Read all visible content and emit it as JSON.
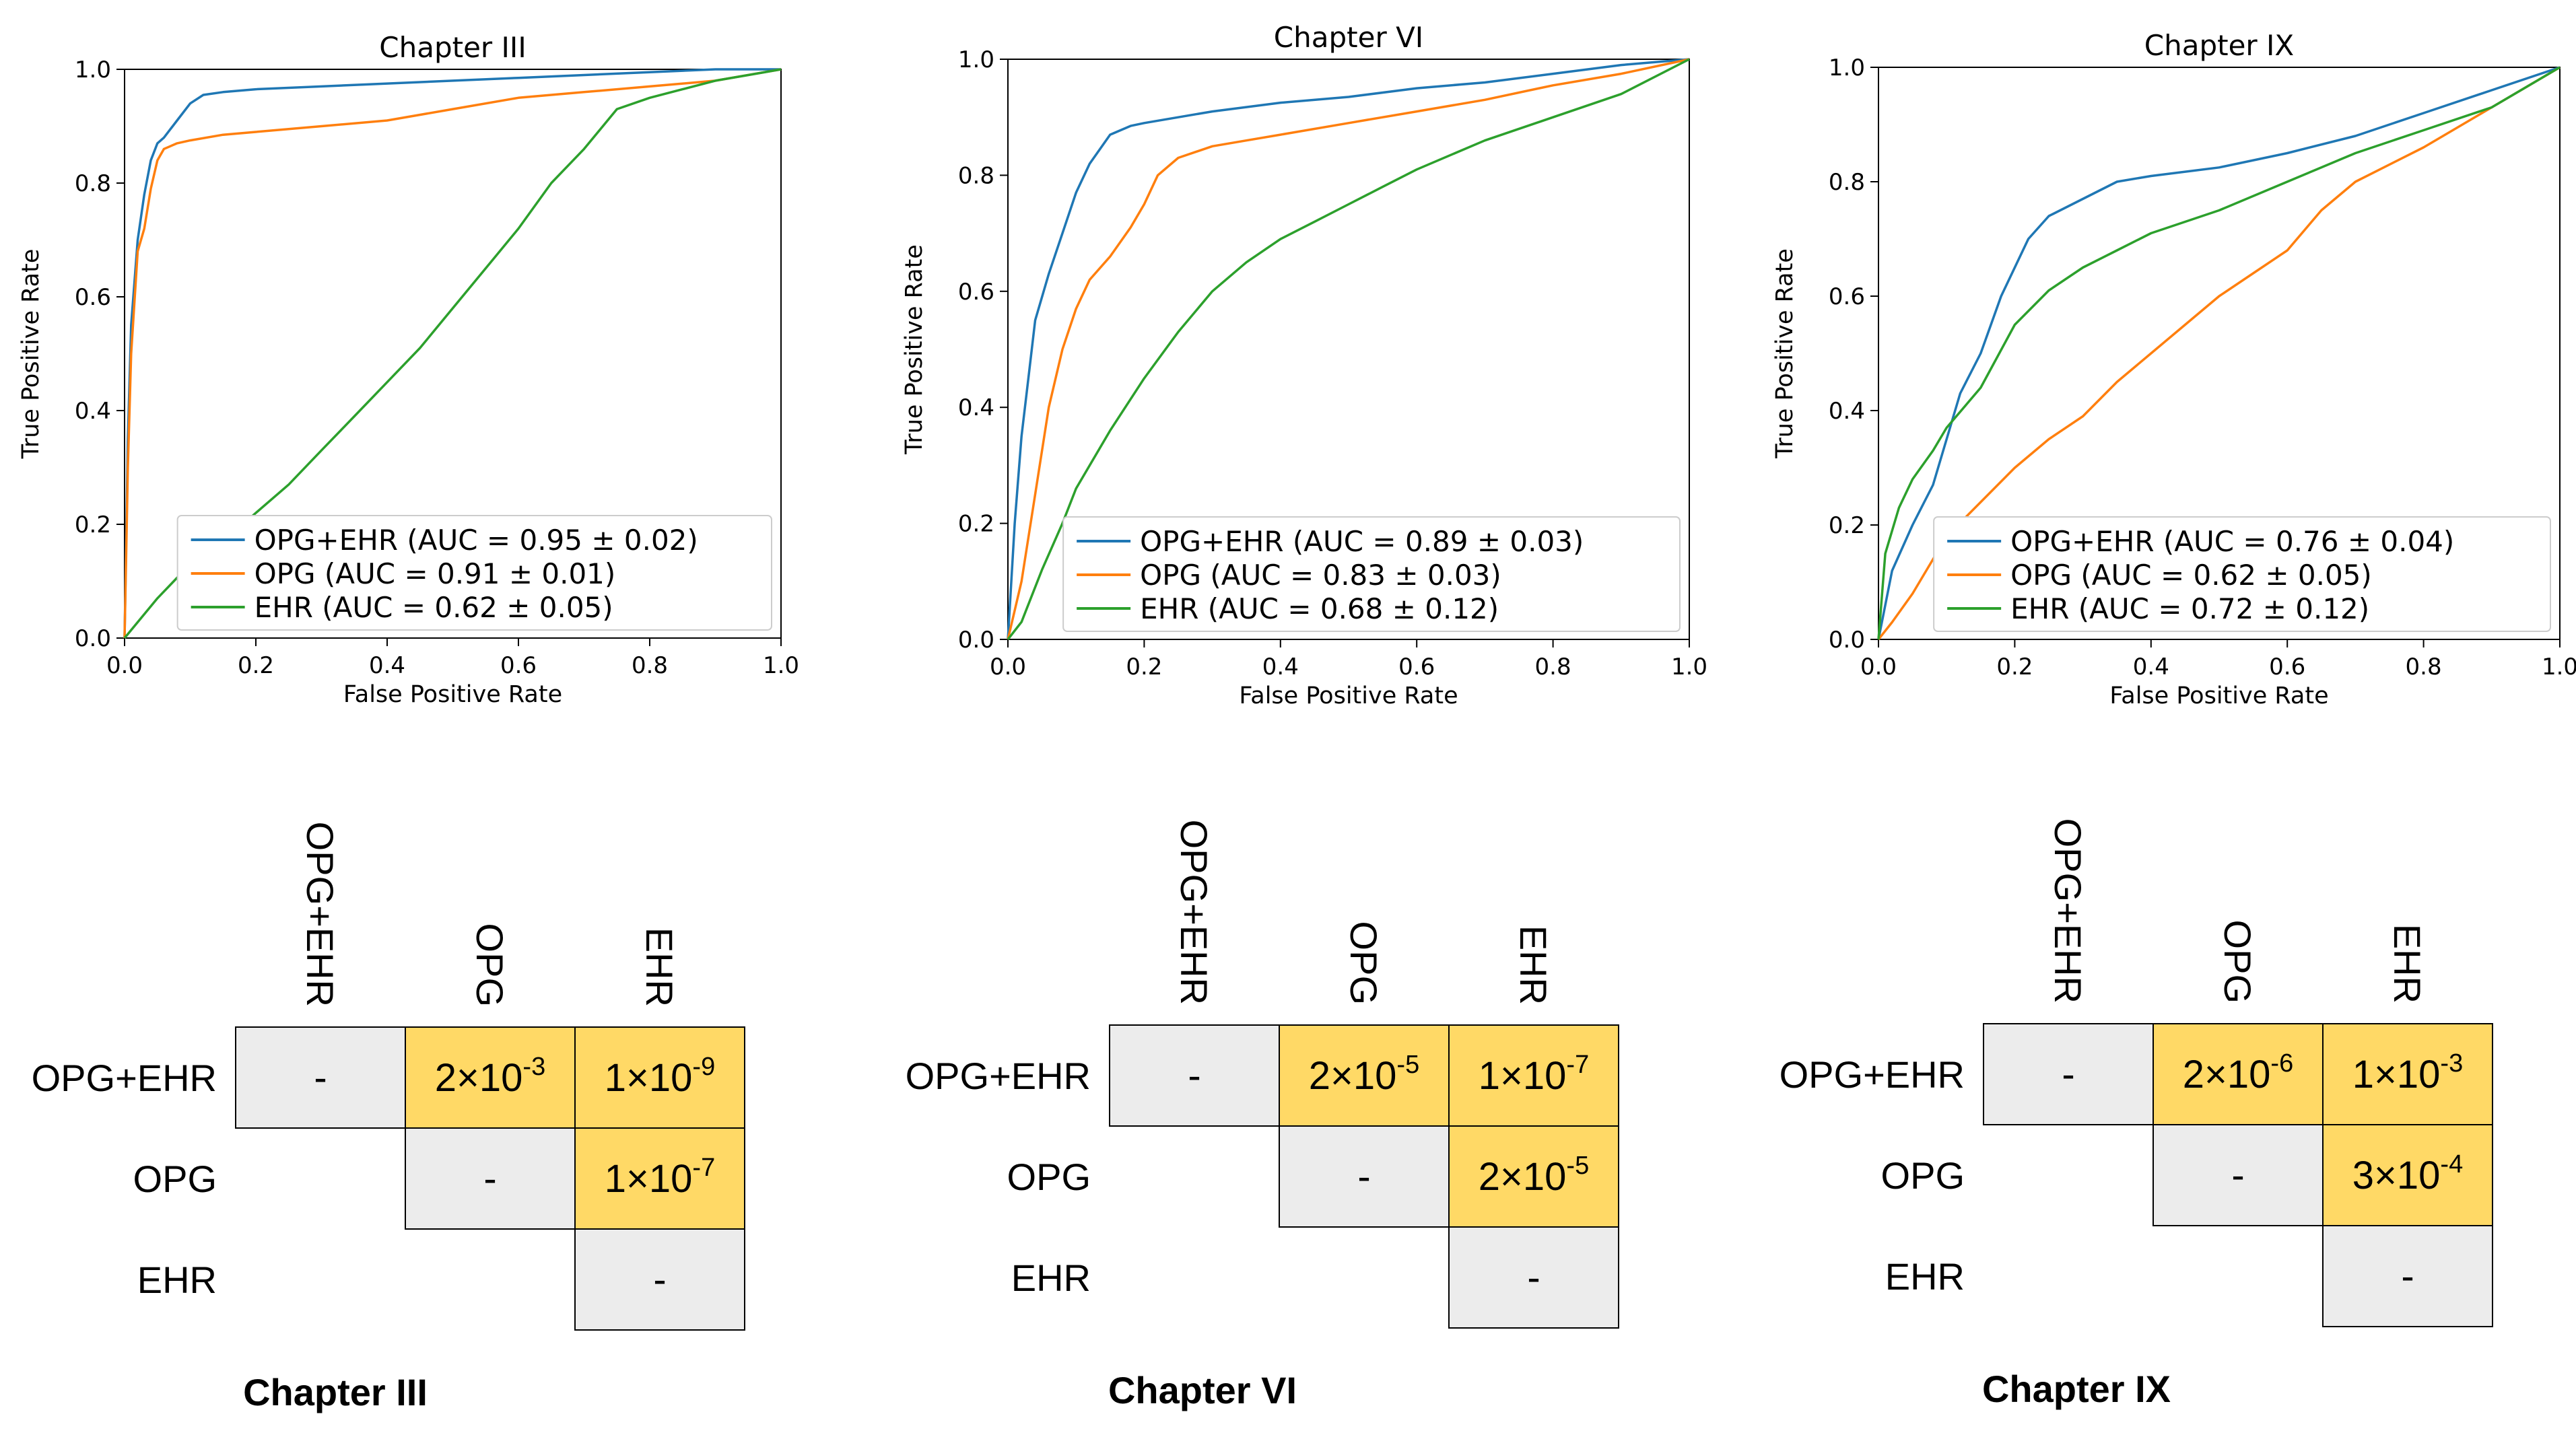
{
  "figure": {
    "colors": {
      "blue": "#1f77b4",
      "orange": "#ff7f0e",
      "green": "#2ca02c",
      "cell_sig": "#ffd966",
      "cell_na": "#ececec"
    }
  },
  "chart_data": [
    {
      "type": "line",
      "title": "Chapter III",
      "xlabel": "False Positive Rate",
      "ylabel": "True Positive Rate",
      "xlim": [
        0,
        1
      ],
      "ylim": [
        0,
        1
      ],
      "xticks": [
        "0.0",
        "0.2",
        "0.4",
        "0.6",
        "0.8",
        "1.0"
      ],
      "yticks": [
        "0.0",
        "0.2",
        "0.4",
        "0.6",
        "0.8",
        "1.0"
      ],
      "legend_position": "lower-right",
      "series": [
        {
          "name": "OPG+EHR (AUC = 0.95 ± 0.02)",
          "color": "blue",
          "x": [
            0,
            0.005,
            0.01,
            0.02,
            0.03,
            0.04,
            0.05,
            0.06,
            0.08,
            0.1,
            0.12,
            0.15,
            0.2,
            0.3,
            0.4,
            0.5,
            0.6,
            0.7,
            0.8,
            0.9,
            1.0
          ],
          "y": [
            0,
            0.35,
            0.55,
            0.7,
            0.78,
            0.84,
            0.87,
            0.88,
            0.91,
            0.94,
            0.955,
            0.96,
            0.965,
            0.97,
            0.975,
            0.98,
            0.985,
            0.99,
            0.995,
            1.0,
            1.0
          ]
        },
        {
          "name": "OPG (AUC = 0.91 ± 0.01)",
          "color": "orange",
          "x": [
            0,
            0.005,
            0.01,
            0.02,
            0.03,
            0.04,
            0.05,
            0.06,
            0.08,
            0.1,
            0.15,
            0.2,
            0.3,
            0.4,
            0.5,
            0.6,
            0.7,
            0.8,
            0.9,
            1.0
          ],
          "y": [
            0,
            0.3,
            0.5,
            0.68,
            0.72,
            0.79,
            0.84,
            0.86,
            0.87,
            0.875,
            0.885,
            0.89,
            0.9,
            0.91,
            0.93,
            0.95,
            0.96,
            0.97,
            0.98,
            1.0
          ]
        },
        {
          "name": "EHR (AUC = 0.62 ± 0.05)",
          "color": "green",
          "x": [
            0,
            0.05,
            0.1,
            0.15,
            0.2,
            0.25,
            0.3,
            0.35,
            0.4,
            0.45,
            0.5,
            0.55,
            0.6,
            0.65,
            0.7,
            0.75,
            0.8,
            0.85,
            0.9,
            0.95,
            1.0
          ],
          "y": [
            0,
            0.07,
            0.13,
            0.17,
            0.22,
            0.27,
            0.33,
            0.39,
            0.45,
            0.51,
            0.58,
            0.65,
            0.72,
            0.8,
            0.86,
            0.93,
            0.95,
            0.965,
            0.98,
            0.99,
            1.0
          ]
        }
      ]
    },
    {
      "type": "line",
      "title": "Chapter VI",
      "xlabel": "False Positive Rate",
      "ylabel": "True Positive Rate",
      "xlim": [
        0,
        1
      ],
      "ylim": [
        0,
        1
      ],
      "xticks": [
        "0.0",
        "0.2",
        "0.4",
        "0.6",
        "0.8",
        "1.0"
      ],
      "yticks": [
        "0.0",
        "0.2",
        "0.4",
        "0.6",
        "0.8",
        "1.0"
      ],
      "legend_position": "lower-right",
      "series": [
        {
          "name": "OPG+EHR (AUC = 0.89 ± 0.03)",
          "color": "blue",
          "x": [
            0,
            0.01,
            0.02,
            0.03,
            0.04,
            0.06,
            0.08,
            0.1,
            0.12,
            0.15,
            0.18,
            0.2,
            0.25,
            0.3,
            0.4,
            0.5,
            0.6,
            0.7,
            0.8,
            0.9,
            1.0
          ],
          "y": [
            0,
            0.2,
            0.35,
            0.45,
            0.55,
            0.63,
            0.7,
            0.77,
            0.82,
            0.87,
            0.885,
            0.89,
            0.9,
            0.91,
            0.925,
            0.935,
            0.95,
            0.96,
            0.975,
            0.99,
            1.0
          ]
        },
        {
          "name": "OPG (AUC = 0.83 ± 0.03)",
          "color": "orange",
          "x": [
            0,
            0.02,
            0.04,
            0.06,
            0.08,
            0.1,
            0.12,
            0.15,
            0.18,
            0.2,
            0.22,
            0.25,
            0.3,
            0.35,
            0.4,
            0.5,
            0.6,
            0.7,
            0.8,
            0.9,
            1.0
          ],
          "y": [
            0,
            0.1,
            0.25,
            0.4,
            0.5,
            0.57,
            0.62,
            0.66,
            0.71,
            0.75,
            0.8,
            0.83,
            0.85,
            0.86,
            0.87,
            0.89,
            0.91,
            0.93,
            0.955,
            0.975,
            1.0
          ]
        },
        {
          "name": "EHR (AUC = 0.68 ± 0.12)",
          "color": "green",
          "x": [
            0,
            0.02,
            0.05,
            0.08,
            0.1,
            0.15,
            0.2,
            0.25,
            0.3,
            0.35,
            0.4,
            0.45,
            0.5,
            0.55,
            0.6,
            0.7,
            0.8,
            0.9,
            1.0
          ],
          "y": [
            0,
            0.03,
            0.12,
            0.2,
            0.26,
            0.36,
            0.45,
            0.53,
            0.6,
            0.65,
            0.69,
            0.72,
            0.75,
            0.78,
            0.81,
            0.86,
            0.9,
            0.94,
            1.0
          ]
        }
      ]
    },
    {
      "type": "line",
      "title": "Chapter IX",
      "xlabel": "False Positive Rate",
      "ylabel": "True Positive Rate",
      "xlim": [
        0,
        1
      ],
      "ylim": [
        0,
        1
      ],
      "xticks": [
        "0.0",
        "0.2",
        "0.4",
        "0.6",
        "0.8",
        "1.0"
      ],
      "yticks": [
        "0.0",
        "0.2",
        "0.4",
        "0.6",
        "0.8",
        "1.0"
      ],
      "legend_position": "lower-right",
      "series": [
        {
          "name": "OPG+EHR (AUC = 0.76 ± 0.04)",
          "color": "blue",
          "x": [
            0,
            0.02,
            0.05,
            0.08,
            0.1,
            0.12,
            0.15,
            0.18,
            0.2,
            0.22,
            0.25,
            0.3,
            0.35,
            0.4,
            0.5,
            0.6,
            0.7,
            0.8,
            0.9,
            1.0
          ],
          "y": [
            0,
            0.12,
            0.2,
            0.27,
            0.35,
            0.43,
            0.5,
            0.6,
            0.65,
            0.7,
            0.74,
            0.77,
            0.8,
            0.81,
            0.825,
            0.85,
            0.88,
            0.92,
            0.96,
            1.0
          ]
        },
        {
          "name": "OPG (AUC = 0.62 ± 0.05)",
          "color": "orange",
          "x": [
            0,
            0.02,
            0.05,
            0.1,
            0.15,
            0.2,
            0.25,
            0.3,
            0.35,
            0.4,
            0.45,
            0.5,
            0.55,
            0.6,
            0.65,
            0.7,
            0.8,
            0.9,
            1.0
          ],
          "y": [
            0,
            0.03,
            0.08,
            0.18,
            0.24,
            0.3,
            0.35,
            0.39,
            0.45,
            0.5,
            0.55,
            0.6,
            0.64,
            0.68,
            0.75,
            0.8,
            0.86,
            0.93,
            1.0
          ]
        },
        {
          "name": "EHR (AUC = 0.72 ± 0.12)",
          "color": "green",
          "x": [
            0,
            0.01,
            0.03,
            0.05,
            0.08,
            0.1,
            0.15,
            0.2,
            0.25,
            0.3,
            0.35,
            0.4,
            0.5,
            0.6,
            0.7,
            0.8,
            0.9,
            1.0
          ],
          "y": [
            0,
            0.15,
            0.23,
            0.28,
            0.33,
            0.37,
            0.44,
            0.55,
            0.61,
            0.65,
            0.68,
            0.71,
            0.75,
            0.8,
            0.85,
            0.89,
            0.93,
            1.0
          ]
        }
      ]
    },
    {
      "type": "table",
      "title": "Chapter III",
      "rows": [
        "OPG+EHR",
        "OPG",
        "EHR"
      ],
      "columns": [
        "OPG+EHR",
        "OPG",
        "EHR"
      ],
      "cells": [
        [
          {
            "mantissa": "-"
          },
          {
            "mantissa": "2",
            "exp": "-3",
            "sig": true
          },
          {
            "mantissa": "1",
            "exp": "-9",
            "sig": true
          }
        ],
        [
          null,
          {
            "mantissa": "-"
          },
          {
            "mantissa": "1",
            "exp": "-7",
            "sig": true
          }
        ],
        [
          null,
          null,
          {
            "mantissa": "-"
          }
        ]
      ]
    },
    {
      "type": "table",
      "title": "Chapter VI",
      "rows": [
        "OPG+EHR",
        "OPG",
        "EHR"
      ],
      "columns": [
        "OPG+EHR",
        "OPG",
        "EHR"
      ],
      "cells": [
        [
          {
            "mantissa": "-"
          },
          {
            "mantissa": "2",
            "exp": "-5",
            "sig": true
          },
          {
            "mantissa": "1",
            "exp": "-7",
            "sig": true
          }
        ],
        [
          null,
          {
            "mantissa": "-"
          },
          {
            "mantissa": "2",
            "exp": "-5",
            "sig": true
          }
        ],
        [
          null,
          null,
          {
            "mantissa": "-"
          }
        ]
      ]
    },
    {
      "type": "table",
      "title": "Chapter IX",
      "rows": [
        "OPG+EHR",
        "OPG",
        "EHR"
      ],
      "columns": [
        "OPG+EHR",
        "OPG",
        "EHR"
      ],
      "cells": [
        [
          {
            "mantissa": "-"
          },
          {
            "mantissa": "2",
            "exp": "-6",
            "sig": true
          },
          {
            "mantissa": "1",
            "exp": "-3",
            "sig": true
          }
        ],
        [
          null,
          {
            "mantissa": "-"
          },
          {
            "mantissa": "3",
            "exp": "-4",
            "sig": true
          }
        ],
        [
          null,
          null,
          {
            "mantissa": "-"
          }
        ]
      ]
    }
  ]
}
